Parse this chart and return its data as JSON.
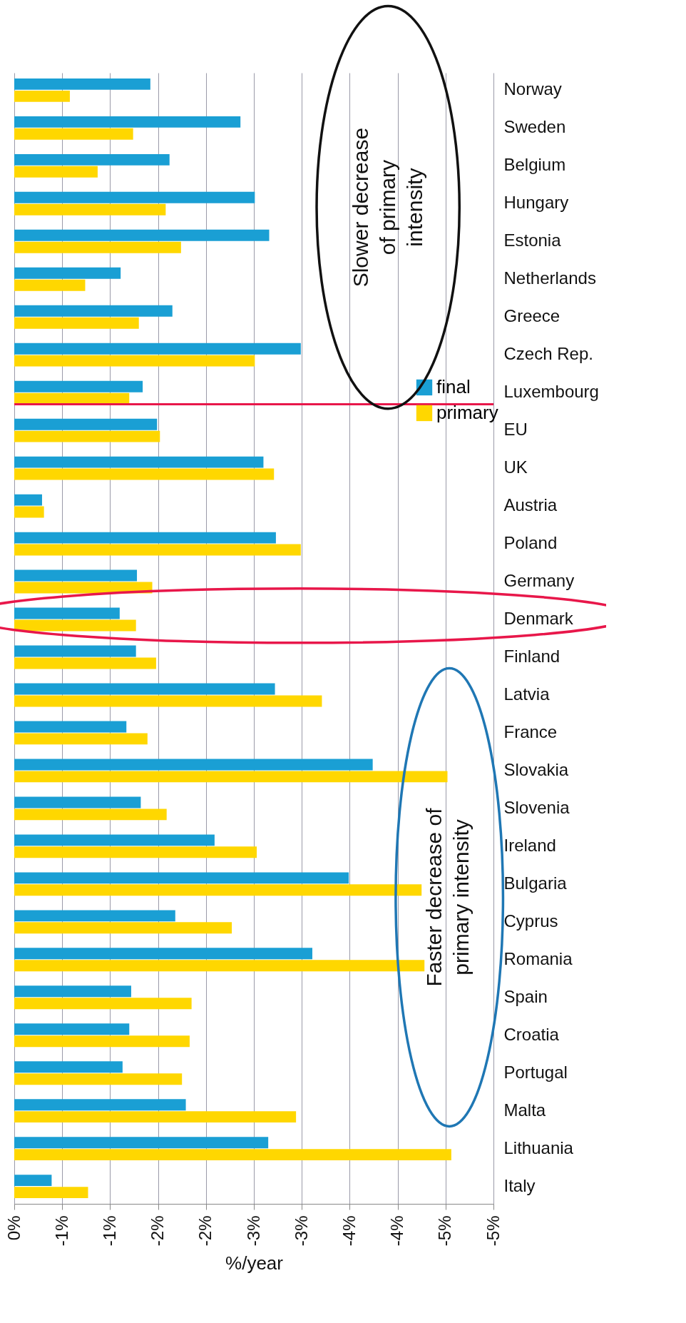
{
  "chart_data": {
    "type": "bar",
    "orientation": "horizontal",
    "categories": [
      "Norway",
      "Sweden",
      "Belgium",
      "Hungary",
      "Estonia",
      "Netherlands",
      "Greece",
      "Czech Rep.",
      "Luxembourg",
      "EU",
      "UK",
      "Austria",
      "Poland",
      "Germany",
      "Denmark",
      "Finland",
      "Latvia",
      "France",
      "Slovakia",
      "Slovenia",
      "Ireland",
      "Bulgaria",
      "Cyprus",
      "Romania",
      "Spain",
      "Croatia",
      "Portugal",
      "Malta",
      "Lithuania",
      "Italy"
    ],
    "series": [
      {
        "name": "final",
        "color": "#1a9fd4",
        "values": [
          -1.42,
          -2.36,
          -1.62,
          -2.51,
          -2.66,
          -1.11,
          -1.65,
          -2.99,
          -1.34,
          -1.49,
          -2.6,
          -0.29,
          -2.73,
          -1.28,
          -1.1,
          -1.27,
          -2.72,
          -1.17,
          -3.74,
          -1.32,
          -2.09,
          -3.49,
          -1.68,
          -3.11,
          -1.22,
          -1.2,
          -1.13,
          -1.79,
          -2.65,
          -0.39
        ]
      },
      {
        "name": "primary",
        "color": "#ffd700",
        "values": [
          -0.58,
          -1.24,
          -0.87,
          -1.58,
          -1.74,
          -0.74,
          -1.3,
          -2.51,
          -1.2,
          -1.52,
          -2.71,
          -0.31,
          -2.99,
          -1.44,
          -1.27,
          -1.48,
          -3.21,
          -1.39,
          -4.52,
          -1.59,
          -2.53,
          -4.25,
          -2.27,
          -4.28,
          -1.85,
          -1.83,
          -1.75,
          -2.94,
          -4.56,
          -0.77
        ]
      }
    ],
    "xlabel": "%/year",
    "xlim": [
      0,
      -5
    ],
    "xticks": [
      {
        "value": 0,
        "label": "0%"
      },
      {
        "value": -0.5,
        "label": "-1%"
      },
      {
        "value": -1,
        "label": "-1%"
      },
      {
        "value": -1.5,
        "label": "-2%"
      },
      {
        "value": -2,
        "label": "-2%"
      },
      {
        "value": -2.5,
        "label": "-3%"
      },
      {
        "value": -3,
        "label": "-3%"
      },
      {
        "value": -3.5,
        "label": "-4%"
      },
      {
        "value": -4,
        "label": "-4%"
      },
      {
        "value": -4.5,
        "label": "-5%"
      },
      {
        "value": -5,
        "label": "-5%"
      }
    ],
    "grid": "x",
    "legend": "right",
    "ref_lines": [
      {
        "axis": "y",
        "value": "Luxembourg",
        "color": "#e8174a"
      }
    ],
    "annotations": [
      "Slower decrease of primary intensity",
      "Faster decrease of primary intensity"
    ]
  }
}
